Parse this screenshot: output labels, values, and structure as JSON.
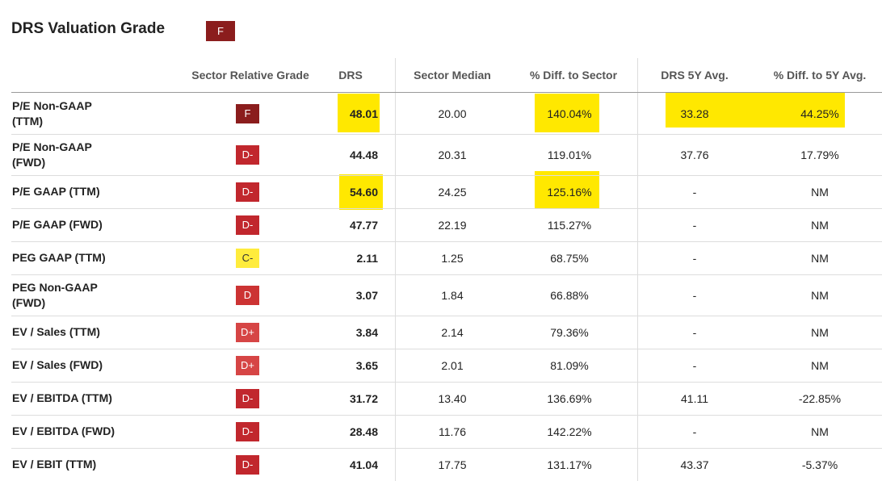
{
  "header": {
    "title": "DRS Valuation Grade",
    "grade": "F"
  },
  "table": {
    "columns": [
      "Sector Relative Grade",
      "DRS",
      "Sector Median",
      "% Diff. to Sector",
      "DRS 5Y Avg.",
      "% Diff. to 5Y Avg."
    ],
    "rows": [
      [
        "P/E Non-GAAP (TTM)",
        "F",
        "48.01",
        "20.00",
        "140.04%",
        "33.28",
        "44.25%"
      ],
      [
        "P/E Non-GAAP (FWD)",
        "D-",
        "44.48",
        "20.31",
        "119.01%",
        "37.76",
        "17.79%"
      ],
      [
        "P/E GAAP (TTM)",
        "D-",
        "54.60",
        "24.25",
        "125.16%",
        "-",
        "NM"
      ],
      [
        "P/E GAAP (FWD)",
        "D-",
        "47.77",
        "22.19",
        "115.27%",
        "-",
        "NM"
      ],
      [
        "PEG GAAP (TTM)",
        "C-",
        "2.11",
        "1.25",
        "68.75%",
        "-",
        "NM"
      ],
      [
        "PEG Non-GAAP (FWD)",
        "D",
        "3.07",
        "1.84",
        "66.88%",
        "-",
        "NM"
      ],
      [
        "EV / Sales (TTM)",
        "D+",
        "3.84",
        "2.14",
        "79.36%",
        "-",
        "NM"
      ],
      [
        "EV / Sales (FWD)",
        "D+",
        "3.65",
        "2.01",
        "81.09%",
        "-",
        "NM"
      ],
      [
        "EV / EBITDA (TTM)",
        "D-",
        "31.72",
        "13.40",
        "136.69%",
        "41.11",
        "-22.85%"
      ],
      [
        "EV / EBITDA (FWD)",
        "D-",
        "28.48",
        "11.76",
        "142.22%",
        "-",
        "NM"
      ],
      [
        "EV / EBIT (TTM)",
        "D-",
        "41.04",
        "17.75",
        "131.17%",
        "43.37",
        "-5.37%"
      ]
    ]
  }
}
